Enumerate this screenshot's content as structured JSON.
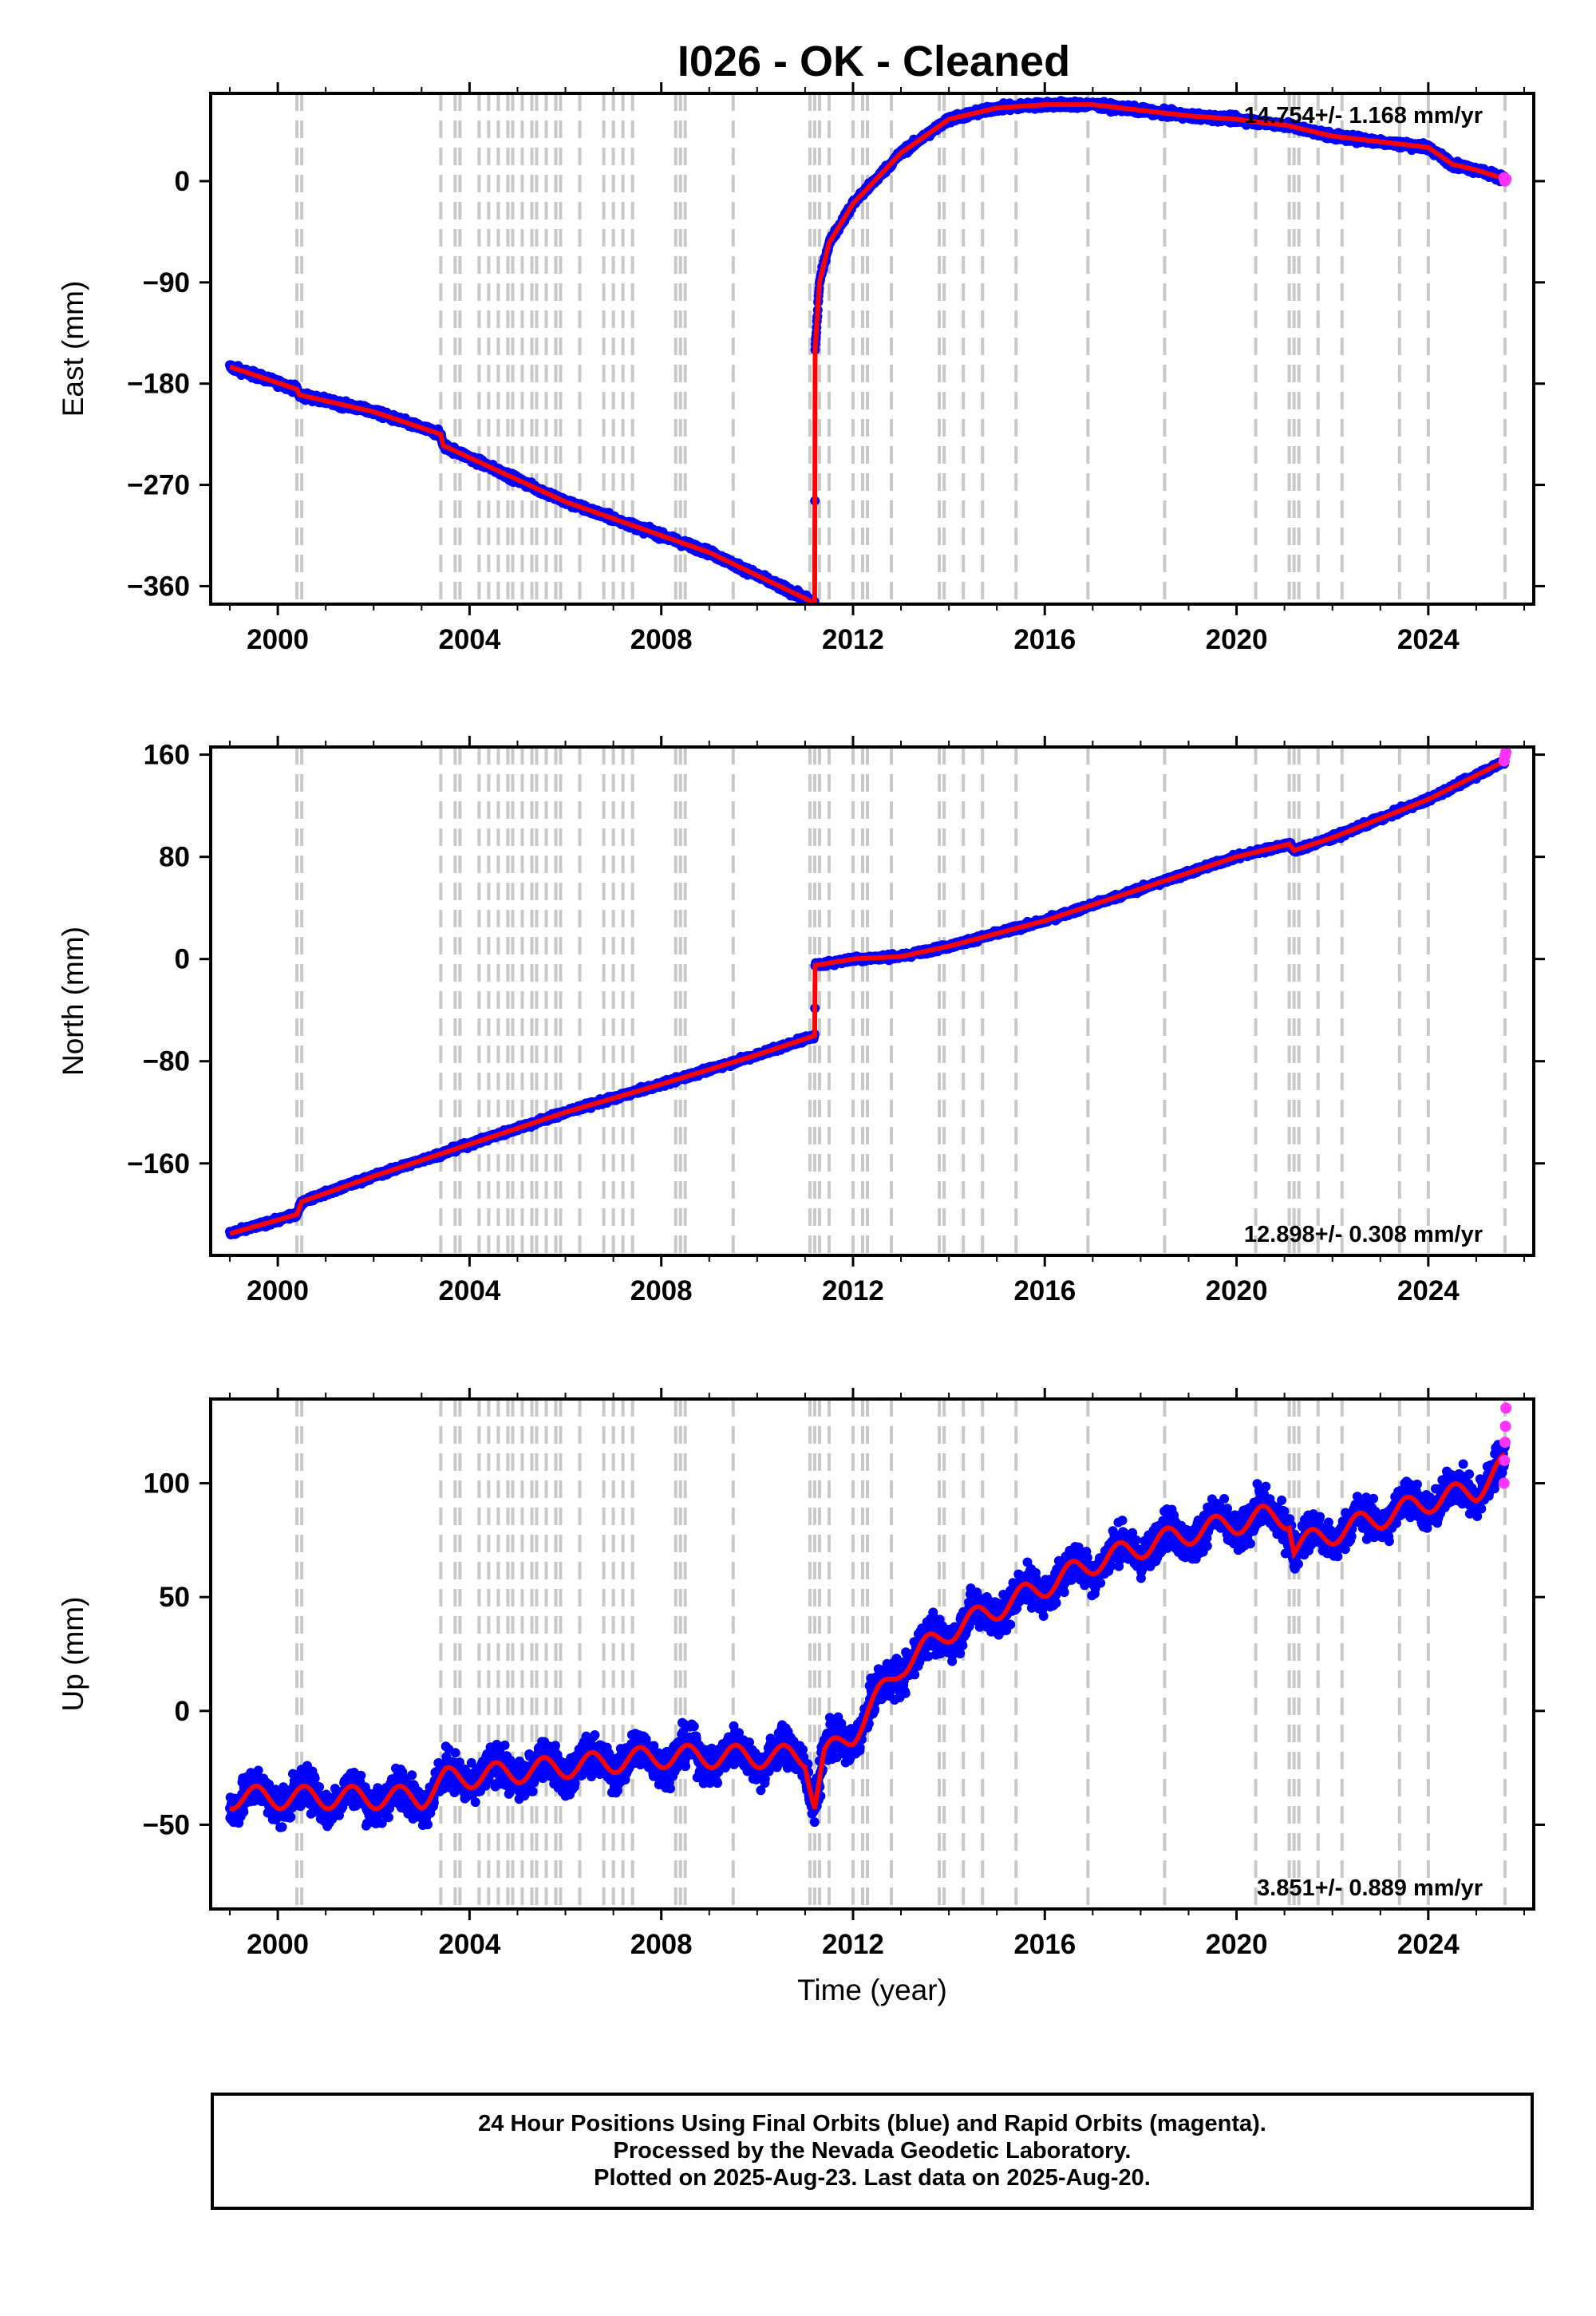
{
  "title": "I026  - OK - Cleaned",
  "colors": {
    "final_orbits": "#0000ff",
    "rapid_orbits": "#ff33ff",
    "model": "#ff0000",
    "event_lines": "#c8c8c8",
    "frame": "#000000"
  },
  "events": [
    2000.4,
    2000.5,
    2003.4,
    2003.7,
    2003.8,
    2004.2,
    2004.4,
    2004.6,
    2004.8,
    2004.9,
    2005.1,
    2005.3,
    2005.4,
    2005.6,
    2005.8,
    2005.9,
    2006.3,
    2006.8,
    2007.0,
    2007.2,
    2007.4,
    2008.3,
    2008.4,
    2008.5,
    2009.5,
    2011.1,
    2011.2,
    2011.3,
    2011.5,
    2012.0,
    2012.2,
    2012.3,
    2012.8,
    2013.8,
    2013.9,
    2014.3,
    2014.7,
    2015.4,
    2016.9,
    2018.5,
    2020.4,
    2021.1,
    2021.2,
    2021.3,
    2021.7,
    2022.2,
    2023.4,
    2024.0,
    2025.6
  ],
  "footer": {
    "line1": "24 Hour Positions Using Final Orbits (blue) and Rapid Orbits (magenta).",
    "line2": "Processed by the Nevada Geodetic Laboratory.",
    "line3": "Plotted on 2025-Aug-23. Last data on 2025-Aug-20."
  },
  "chart_data": [
    {
      "type": "scatter",
      "title": "",
      "xlabel": "",
      "ylabel": "East (mm)",
      "xlim": [
        1998.6,
        2026.2
      ],
      "ylim": [
        -376,
        78
      ],
      "xticks": [
        2000,
        2004,
        2008,
        2012,
        2016,
        2020,
        2024
      ],
      "yticks": [
        0,
        -90,
        -180,
        -270,
        -360
      ],
      "ytick_labels": [
        "0",
        "−90",
        "−180",
        "−270",
        "−360"
      ],
      "rate_label": "14.754+/- 1.168 mm/yr",
      "rate_position": "top-right",
      "noise_mm": 3,
      "series": [
        {
          "role": "model",
          "x": [
            1999.0,
            2000.4,
            2000.45,
            2002.0,
            2003.4,
            2003.45,
            2006.0,
            2009.0,
            2011.2,
            2011.21,
            2011.3,
            2011.5,
            2012.0,
            2013.0,
            2014.0,
            2015.0,
            2016.0,
            2017.0,
            2018.0,
            2019.0,
            2020.0,
            2020.5,
            2021.0,
            2022.0,
            2023.0,
            2024.0,
            2024.5,
            2025.0,
            2025.6
          ],
          "values": [
            -165,
            -185,
            -190,
            -205,
            -225,
            -235,
            -285,
            -330,
            -375,
            -150,
            -90,
            -55,
            -20,
            25,
            55,
            65,
            68,
            68,
            63,
            58,
            55,
            52,
            50,
            40,
            35,
            30,
            15,
            10,
            2
          ]
        },
        {
          "role": "rapid",
          "x": [
            2025.58,
            2025.6,
            2025.62
          ],
          "values": [
            3,
            0,
            2
          ]
        }
      ]
    },
    {
      "type": "scatter",
      "title": "",
      "xlabel": "",
      "ylabel": "North (mm)",
      "xlim": [
        1998.6,
        2026.2
      ],
      "ylim": [
        -232,
        166
      ],
      "xticks": [
        2000,
        2004,
        2008,
        2012,
        2016,
        2020,
        2024
      ],
      "yticks": [
        160,
        80,
        0,
        -80,
        -160
      ],
      "ytick_labels": [
        "160",
        "80",
        "0",
        "−80",
        "−160"
      ],
      "rate_label": "12.898+/- 0.308 mm/yr",
      "rate_position": "bottom-right",
      "noise_mm": 2,
      "series": [
        {
          "role": "model",
          "x": [
            1999.0,
            2000.4,
            2000.5,
            2002.0,
            2004.0,
            2006.0,
            2008.0,
            2010.0,
            2011.2,
            2011.21,
            2012.0,
            2013.0,
            2014.0,
            2016.0,
            2018.0,
            2020.0,
            2021.1,
            2021.2,
            2022.0,
            2024.0,
            2025.6
          ],
          "values": [
            -215,
            -200,
            -190,
            -170,
            -145,
            -120,
            -98,
            -75,
            -60,
            -5,
            0,
            2,
            10,
            30,
            55,
            80,
            90,
            85,
            95,
            125,
            155
          ]
        },
        {
          "role": "rapid",
          "x": [
            2025.58,
            2025.6,
            2025.62
          ],
          "values": [
            155,
            159,
            162
          ]
        }
      ]
    },
    {
      "type": "scatter",
      "title": "",
      "xlabel": "Time (year)",
      "ylabel": "Up (mm)",
      "xlim": [
        1998.6,
        2026.2
      ],
      "ylim": [
        -87,
        137
      ],
      "xticks": [
        2000,
        2004,
        2008,
        2012,
        2016,
        2020,
        2024
      ],
      "yticks": [
        100,
        50,
        0,
        -50
      ],
      "ytick_labels": [
        "100",
        "50",
        "0",
        "−50"
      ],
      "rate_label": "3.851+/- 0.889 mm/yr",
      "rate_position": "bottom-right",
      "noise_mm": 8,
      "seasonal_mm": 5,
      "series": [
        {
          "role": "model",
          "x": [
            1999.0,
            2003.0,
            2003.5,
            2008.0,
            2011.0,
            2011.2,
            2011.4,
            2012.0,
            2013.0,
            2014.0,
            2015.0,
            2016.0,
            2017.0,
            2018.0,
            2019.0,
            2020.5,
            2021.1,
            2021.2,
            2022.0,
            2023.0,
            2024.0,
            2025.0,
            2025.6
          ],
          "values": [
            -38,
            -38,
            -30,
            -20,
            -20,
            -40,
            -20,
            -10,
            20,
            35,
            45,
            55,
            65,
            72,
            78,
            85,
            85,
            72,
            78,
            85,
            92,
            97,
            108
          ]
        },
        {
          "role": "rapid",
          "x": [
            2025.58,
            2025.59,
            2025.6,
            2025.61,
            2025.62
          ],
          "values": [
            100,
            110,
            118,
            125,
            133
          ]
        }
      ]
    }
  ]
}
